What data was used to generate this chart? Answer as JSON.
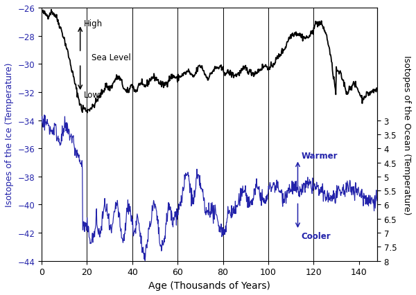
{
  "xlabel": "Age (Thousands of Years)",
  "ylabel_left": "Isotopes of the Ice (Temperature)",
  "ylabel_right": "Isotopes of the Ocean (Temperature)",
  "xlim": [
    0,
    148
  ],
  "ylim_left": [
    -44,
    -26
  ],
  "yticks_left": [
    -44,
    -42,
    -40,
    -38,
    -36,
    -34,
    -32,
    -30,
    -28,
    -26
  ],
  "yticks_right_labels": [
    "8",
    "7.5",
    "7",
    "6.5",
    "6",
    "5.5",
    "5",
    "4.5",
    "4",
    "3.5",
    "3"
  ],
  "yticks_right_positions": [
    -44,
    -43,
    -42,
    -41,
    -40,
    -39,
    -38,
    -37,
    -36,
    -35,
    -34
  ],
  "xticks": [
    0,
    20,
    40,
    60,
    80,
    100,
    120,
    140
  ],
  "vlines": [
    20,
    40,
    60,
    80,
    100,
    120
  ],
  "black_line_color": "#000000",
  "blue_line_color": "#2222aa",
  "background_color": "#ffffff",
  "annotation_sea_level": "Sea Level",
  "annotation_high": "High",
  "annotation_low": "Low",
  "annotation_warmer": "Warmer",
  "annotation_cooler": "Cooler"
}
